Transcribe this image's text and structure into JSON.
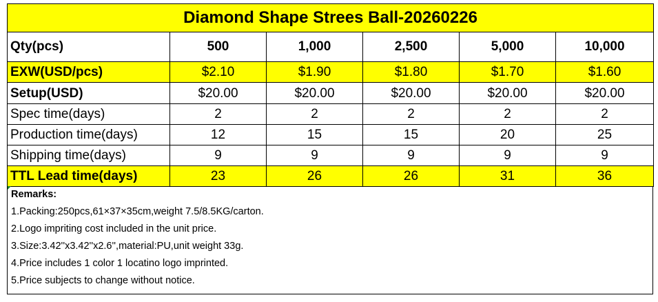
{
  "title": "Diamond Shape Strees Ball-20260226",
  "qty": {
    "label": "Qty(pcs)",
    "values": [
      "500",
      "1,000",
      "2,500",
      "5,000",
      "10,000"
    ]
  },
  "exw": {
    "label": "EXW(USD/pcs)",
    "values": [
      "$2.10",
      "$1.90",
      "$1.80",
      "$1.70",
      "$1.60"
    ]
  },
  "setup": {
    "label": "Setup(USD)",
    "values": [
      "$20.00",
      "$20.00",
      "$20.00",
      "$20.00",
      "$20.00"
    ]
  },
  "spec": {
    "label": "Spec time(days)",
    "values": [
      "2",
      "2",
      "2",
      "2",
      "2"
    ]
  },
  "production": {
    "label": "Production time(days)",
    "values": [
      "12",
      "15",
      "15",
      "20",
      "25"
    ]
  },
  "shipping": {
    "label": "Shipping time(days)",
    "values": [
      "9",
      "9",
      "9",
      "9",
      "9"
    ]
  },
  "ttl": {
    "label": "TTL Lead time(days)",
    "values": [
      "23",
      "26",
      "26",
      "31",
      "36"
    ]
  },
  "remarks": {
    "title": "Remarks:",
    "lines": [
      "1.Packing:250pcs,61×37×35cm,weight 7.5/8.5KG/carton.",
      "2.Logo impriting cost included in the unit price.",
      "3.Size:3.42''x3.42''x2.6'',material:PU,unit weight 33g.",
      "4.Price includes 1 color 1 locatino logo imprinted.",
      "5.Price subjects to change without notice."
    ]
  },
  "colors": {
    "highlight": "#ffff00",
    "border": "#000000",
    "marker": "#1a7f2e"
  }
}
